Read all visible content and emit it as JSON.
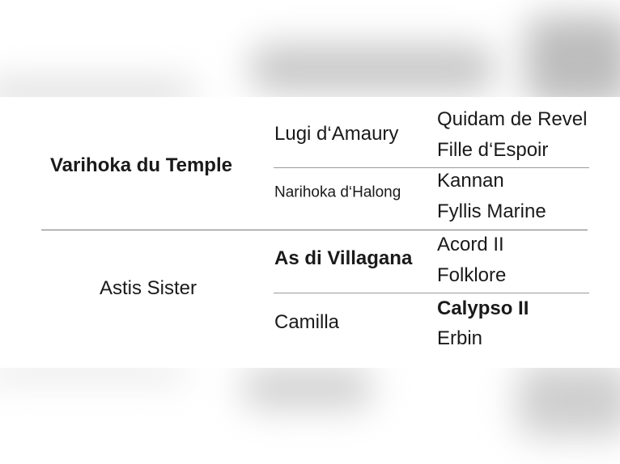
{
  "pedigree": {
    "sire": {
      "name": "Varihoka du Temple",
      "bold": true
    },
    "dam": {
      "name": "Astis Sister",
      "bold": false
    },
    "sire_sire": {
      "name": "Lugi d‘Amaury"
    },
    "sire_dam": {
      "name": "Narihoka d‘Halong"
    },
    "dam_sire": {
      "name": "As di Villagana",
      "bold": true
    },
    "dam_dam": {
      "name": "Camilla"
    },
    "great_grandparents": [
      {
        "name": "Quidam de Revel"
      },
      {
        "name": "Fille d‘Espoir"
      },
      {
        "name": "Kannan"
      },
      {
        "name": "Fyllis Marine"
      },
      {
        "name": "Acord II"
      },
      {
        "name": "Folklore"
      },
      {
        "name": "Calypso II",
        "bold": true
      },
      {
        "name": "Erbin"
      }
    ]
  }
}
